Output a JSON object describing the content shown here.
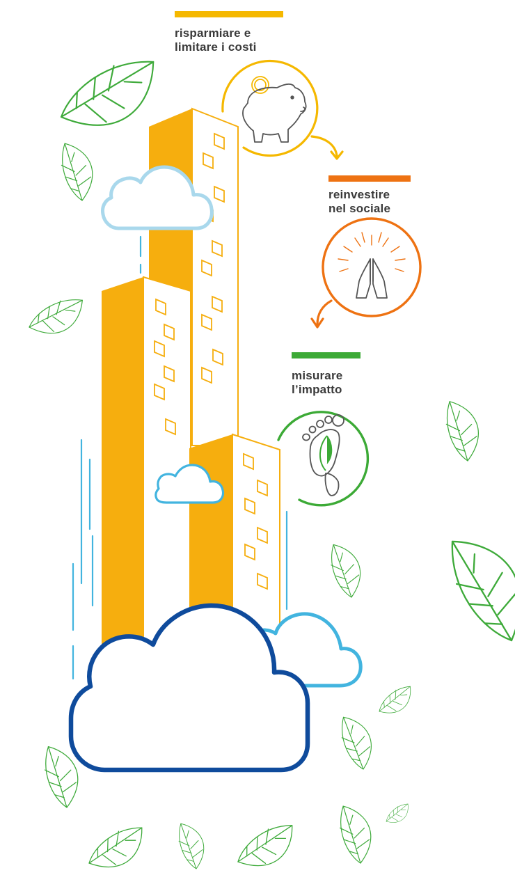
{
  "steps": [
    {
      "id": "save",
      "line1": "risparmiare e",
      "line2": "limitare i costi",
      "icon": "piggy-bank-icon"
    },
    {
      "id": "reinvest",
      "line1": "reinvestire",
      "line2": "nel sociale",
      "icon": "praying-hands-icon"
    },
    {
      "id": "measure",
      "line1": "misurare",
      "line2": "l’impatto",
      "icon": "footprint-leaf-icon"
    }
  ],
  "colors": {
    "yellow": "#F5B800",
    "building": "#F6AE0E",
    "orange": "#EE7212",
    "green": "#3CAA36",
    "leaf": "#3EAA3A",
    "cloud_light": "#A9D8EC",
    "cloud_mid": "#42B4DF",
    "cloud_dark": "#0F4B9C",
    "text": "#3A3A3A"
  }
}
